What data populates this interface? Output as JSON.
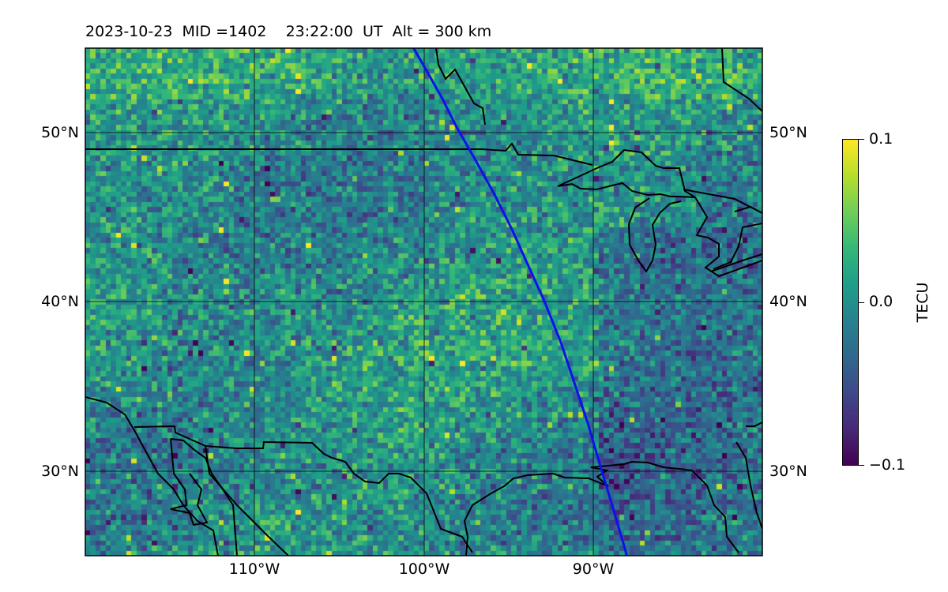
{
  "title": "2023-10-23  MID =1402    23:22:00  UT  Alt = 300 km",
  "map": {
    "lon_range": [
      -120,
      -80
    ],
    "lat_range": [
      25,
      55
    ],
    "grid_lons": [
      -110,
      -100,
      -90
    ],
    "grid_lats": [
      30,
      40,
      50
    ],
    "lon_labels": [
      "110°W",
      "100°W",
      "90°W"
    ],
    "lat_labels": [
      "30°N",
      "40°N",
      "50°N"
    ],
    "track_color": "#1010ee",
    "coast_color": "#000000",
    "grid_color": "#000000"
  },
  "colorbar": {
    "label": "TECU",
    "min": -0.1,
    "max": 0.1,
    "ticks": [
      "0.1",
      "0.0",
      "−0.1"
    ],
    "colormap": "viridis"
  },
  "satellite_track": [
    [
      -100.6,
      55
    ],
    [
      -99.8,
      53.6
    ],
    [
      -98.9,
      52.0
    ],
    [
      -98.1,
      50.4
    ],
    [
      -96.9,
      48.3
    ],
    [
      -95.8,
      46.3
    ],
    [
      -94.8,
      44.3
    ],
    [
      -93.9,
      42.3
    ],
    [
      -92.9,
      40.1
    ],
    [
      -91.9,
      37.6
    ],
    [
      -91.1,
      35.2
    ],
    [
      -90.3,
      32.8
    ],
    [
      -89.6,
      30.4
    ],
    [
      -88.7,
      27.4
    ],
    [
      -88.0,
      25
    ]
  ]
}
